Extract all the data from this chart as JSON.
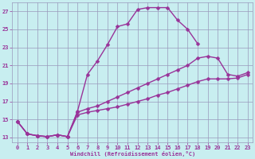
{
  "xlabel": "Windchill (Refroidissement éolien,°C)",
  "xlim": [
    -0.5,
    23.5
  ],
  "ylim": [
    12.5,
    28
  ],
  "yticks": [
    13,
    15,
    17,
    19,
    21,
    23,
    25,
    27
  ],
  "xticks": [
    0,
    1,
    2,
    3,
    4,
    5,
    6,
    7,
    8,
    9,
    10,
    11,
    12,
    13,
    14,
    15,
    16,
    17,
    18,
    19,
    20,
    21,
    22,
    23
  ],
  "bg_color": "#c8eef0",
  "grid_color": "#9999bb",
  "line_color": "#993399",
  "line_width": 1.0,
  "marker": "D",
  "marker_size": 2.5,
  "series": [
    {
      "x": [
        0,
        1,
        2,
        3,
        4,
        5,
        6,
        7,
        8,
        9,
        10,
        11,
        12,
        13,
        14,
        15,
        16,
        17,
        18
      ],
      "y": [
        14.8,
        13.4,
        13.2,
        13.1,
        13.3,
        13.1,
        15.9,
        20.0,
        21.5,
        23.3,
        25.3,
        25.6,
        27.2,
        27.4,
        27.4,
        27.4,
        26.0,
        25.0,
        23.4
      ]
    },
    {
      "x": [
        0,
        1,
        2,
        3,
        4,
        5,
        6,
        7,
        8,
        9,
        10,
        11,
        12,
        13,
        14,
        15,
        16,
        17,
        18,
        19,
        20,
        21,
        22,
        23
      ],
      "y": [
        14.8,
        13.4,
        13.2,
        13.1,
        13.3,
        13.1,
        15.8,
        16.2,
        16.5,
        17.0,
        17.5,
        18.0,
        18.5,
        19.0,
        19.5,
        20.0,
        20.5,
        21.0,
        21.8,
        22.0,
        21.8,
        20.0,
        19.8,
        20.2
      ]
    },
    {
      "x": [
        0,
        1,
        2,
        3,
        4,
        5,
        6,
        7,
        8,
        9,
        10,
        11,
        12,
        13,
        14,
        15,
        16,
        17,
        18,
        19,
        20,
        21,
        22,
        23
      ],
      "y": [
        14.8,
        13.4,
        13.2,
        13.1,
        13.3,
        13.1,
        15.5,
        15.8,
        16.0,
        16.2,
        16.4,
        16.7,
        17.0,
        17.3,
        17.7,
        18.0,
        18.4,
        18.8,
        19.2,
        19.5,
        19.5,
        19.5,
        19.6,
        20.0
      ]
    }
  ]
}
